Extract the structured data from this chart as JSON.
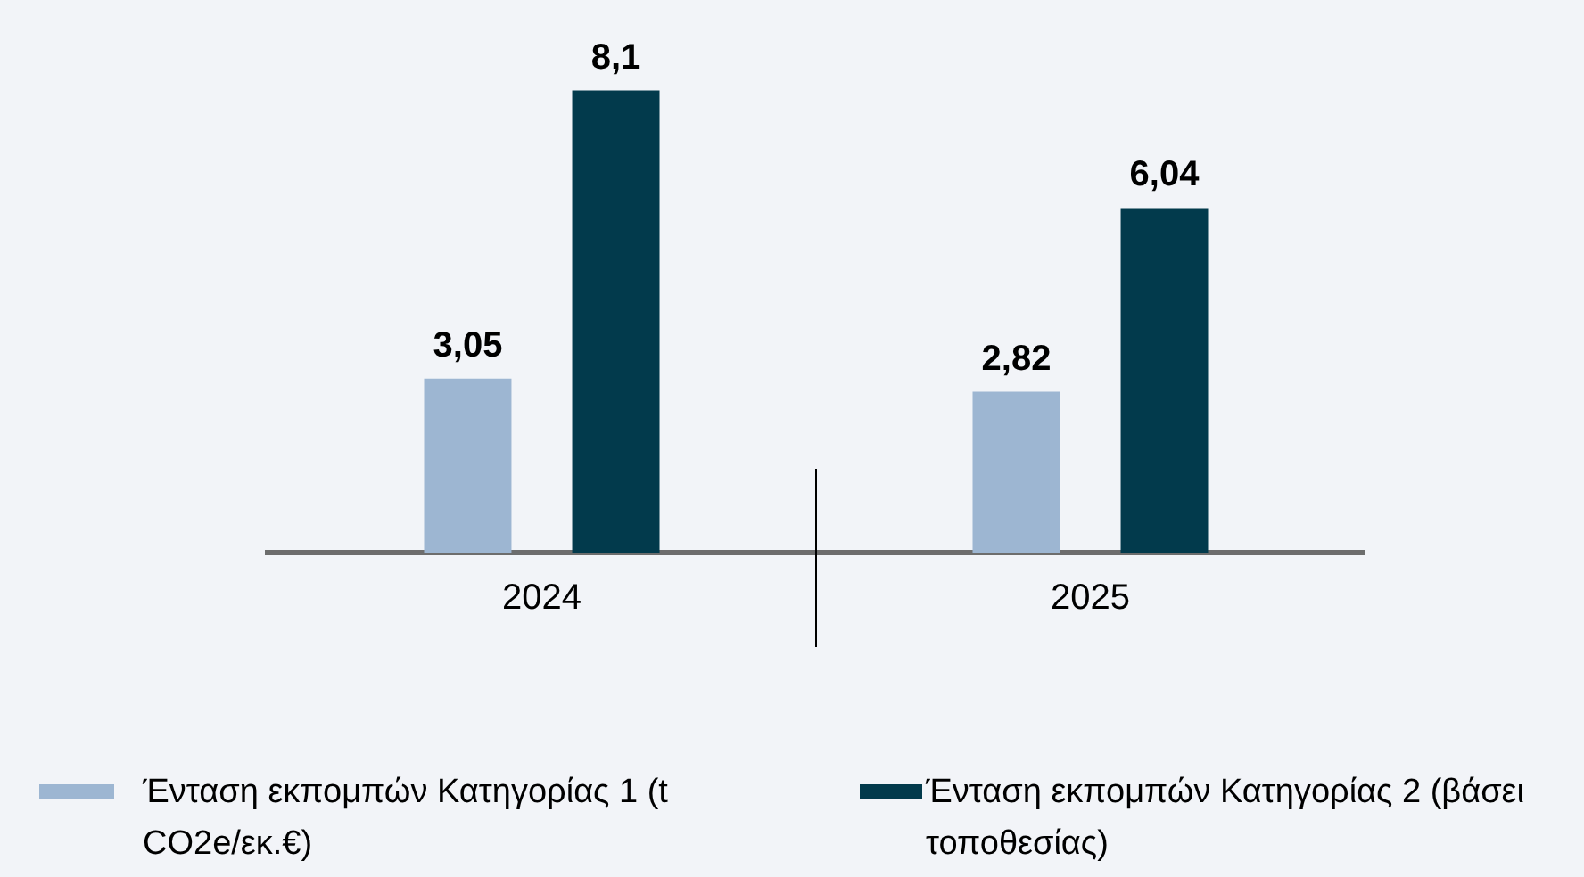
{
  "chart_data": {
    "type": "bar",
    "categories": [
      "2024",
      "2025"
    ],
    "series": [
      {
        "name": "Ένταση εκπομπών  Κατηγορίας 1 (t CO2e/εκ.€)",
        "color": "#9db6d2",
        "values": [
          3.05,
          2.82
        ],
        "value_labels": [
          "3,05",
          "2,82"
        ]
      },
      {
        "name": "Ένταση εκπομπών  Κατηγορίας 2 (βάσει τοποθεσίας)",
        "color": "#023a4c",
        "values": [
          8.1,
          6.04
        ],
        "value_labels": [
          "8,1",
          "6,04"
        ]
      }
    ],
    "grid": false,
    "legend": "bottom"
  }
}
